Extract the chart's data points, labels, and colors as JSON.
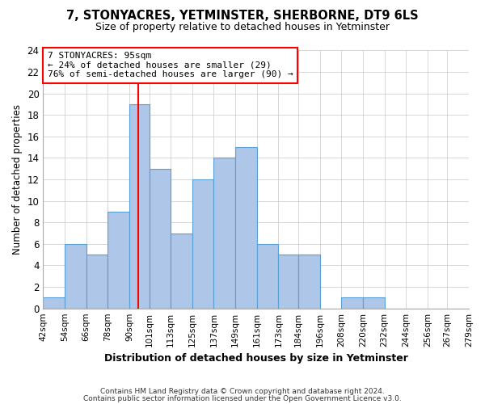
{
  "title": "7, STONYACRES, YETMINSTER, SHERBORNE, DT9 6LS",
  "subtitle": "Size of property relative to detached houses in Yetminster",
  "xlabel": "Distribution of detached houses by size in Yetminster",
  "ylabel": "Number of detached properties",
  "bar_edges": [
    42,
    54,
    66,
    78,
    90,
    101,
    113,
    125,
    137,
    149,
    161,
    173,
    184,
    196,
    208,
    220,
    232,
    244,
    256,
    267,
    279
  ],
  "bar_heights": [
    1,
    6,
    5,
    9,
    19,
    13,
    7,
    12,
    14,
    15,
    6,
    5,
    5,
    0,
    1,
    1,
    0,
    0,
    0,
    0
  ],
  "bar_color": "#aec6e8",
  "bar_edge_color": "#5a9fd4",
  "reference_line_x": 95,
  "reference_line_color": "red",
  "ylim": [
    0,
    24
  ],
  "yticks": [
    0,
    2,
    4,
    6,
    8,
    10,
    12,
    14,
    16,
    18,
    20,
    22,
    24
  ],
  "tick_labels": [
    "42sqm",
    "54sqm",
    "66sqm",
    "78sqm",
    "90sqm",
    "101sqm",
    "113sqm",
    "125sqm",
    "137sqm",
    "149sqm",
    "161sqm",
    "173sqm",
    "184sqm",
    "196sqm",
    "208sqm",
    "220sqm",
    "232sqm",
    "244sqm",
    "256sqm",
    "267sqm",
    "279sqm"
  ],
  "annotation_title": "7 STONYACRES: 95sqm",
  "annotation_line1": "← 24% of detached houses are smaller (29)",
  "annotation_line2": "76% of semi-detached houses are larger (90) →",
  "footer1": "Contains HM Land Registry data © Crown copyright and database right 2024.",
  "footer2": "Contains public sector information licensed under the Open Government Licence v3.0.",
  "background_color": "#ffffff",
  "grid_color": "#d0d0d0"
}
